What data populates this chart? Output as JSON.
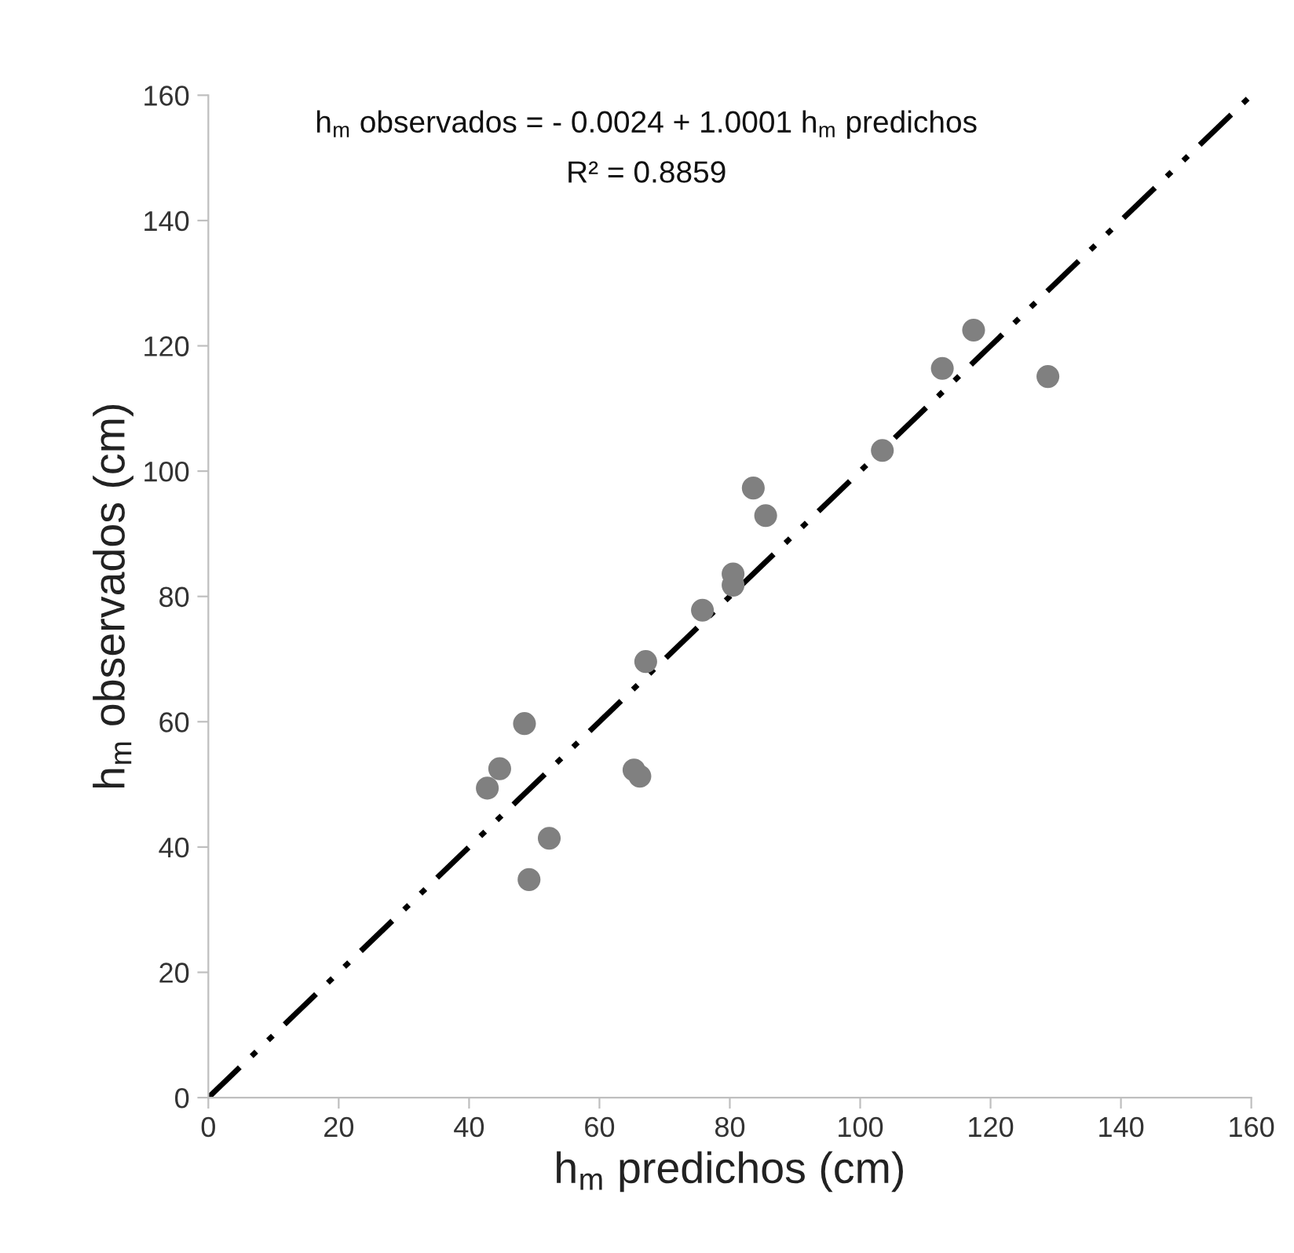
{
  "chart_data": {
    "type": "scatter",
    "xlabel": "h$_{m}$ predichos (cm)",
    "ylabel": "h$_{m}$ observados (cm)",
    "x": [
      42.8,
      44.7,
      48.5,
      52.3,
      49.2,
      65.3,
      66.2,
      67.1,
      75.8,
      80.5,
      80.5,
      83.6,
      85.5,
      103.4,
      112.6,
      117.4,
      128.8
    ],
    "series": [
      {
        "color": "#808080",
        "marker": "circle",
        "values": [
          49.4,
          52.5,
          59.7,
          41.4,
          34.8,
          52.3,
          51.3,
          69.6,
          77.8,
          83.6,
          81.8,
          97.3,
          92.9,
          103.3,
          116.4,
          122.5,
          115.1
        ]
      },
      {
        "type": "line",
        "color": "#000000",
        "line_style": "dashed",
        "marker": "none",
        "x": [
          0,
          160
        ],
        "values": [
          0,
          160
        ]
      }
    ],
    "annotations": [
      "h$_{m}$ observados = - 0.0024 + 1.0001 h$_{m}$ predichos",
      "R² = 0.8859"
    ],
    "xlim": [
      0,
      160
    ],
    "ylim": [
      0,
      160
    ],
    "xticks": [
      0,
      20,
      40,
      60,
      80,
      100,
      120,
      140,
      160
    ],
    "yticks": [
      0,
      20,
      40,
      60,
      80,
      100,
      120,
      140,
      160
    ],
    "grid": false,
    "legend": false
  }
}
